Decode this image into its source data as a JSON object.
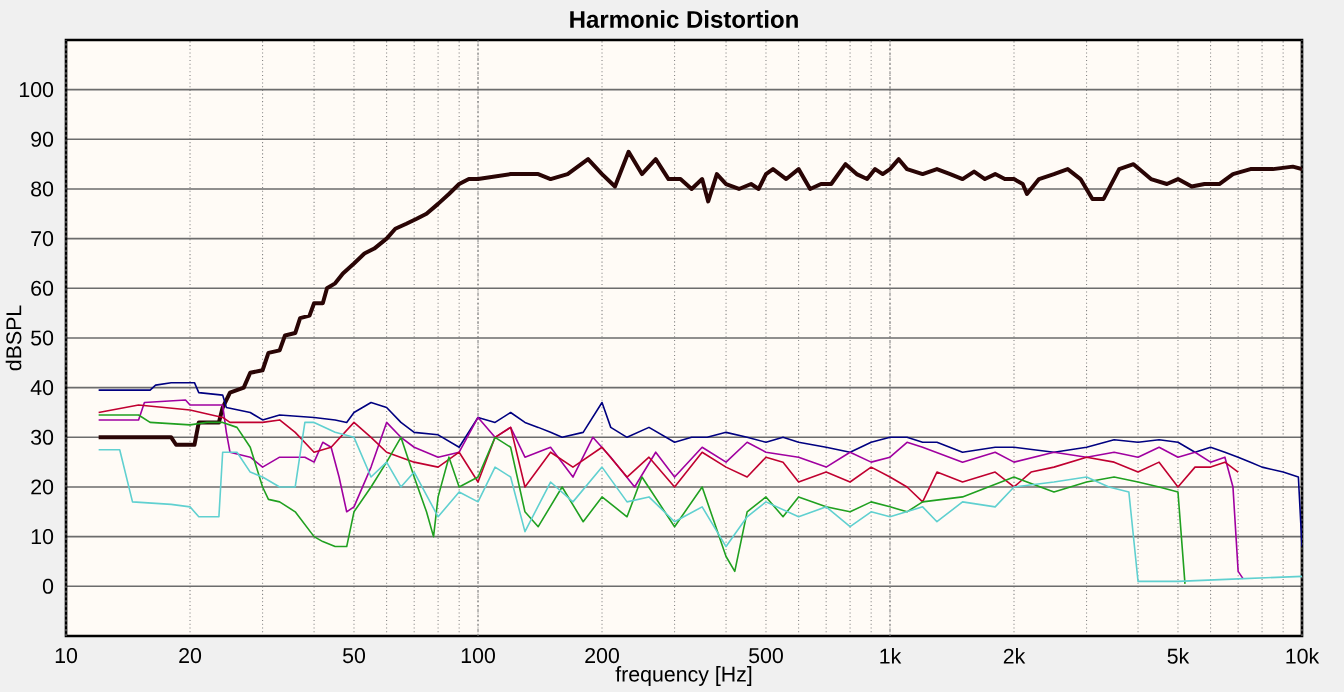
{
  "chart_data": {
    "type": "line",
    "title": "Harmonic Distortion",
    "xlabel": "frequency [Hz]",
    "ylabel": "dBSPL",
    "log": "x",
    "grid": true,
    "xlim": [
      10,
      10000
    ],
    "ylim": [
      -10,
      110
    ],
    "xticks": [
      10,
      20,
      {
        "value": 30,
        "label": null
      },
      {
        "value": 40,
        "label": null
      },
      50,
      {
        "value": 60,
        "label": null
      },
      {
        "value": 70,
        "label": null
      },
      {
        "value": 80,
        "label": null
      },
      {
        "value": 90,
        "label": null
      },
      100,
      200,
      {
        "value": 300,
        "label": null
      },
      {
        "value": 400,
        "label": null
      },
      500,
      {
        "value": 600,
        "label": null
      },
      {
        "value": 700,
        "label": null
      },
      {
        "value": 800,
        "label": null
      },
      {
        "value": 900,
        "label": null
      },
      {
        "value": 1000,
        "label": "1k"
      },
      {
        "value": 2000,
        "label": "2k"
      },
      {
        "value": 3000,
        "label": null
      },
      {
        "value": 4000,
        "label": null
      },
      {
        "value": 5000,
        "label": "5k"
      },
      {
        "value": 6000,
        "label": null
      },
      {
        "value": 7000,
        "label": null
      },
      {
        "value": 8000,
        "label": null
      },
      {
        "value": 9000,
        "label": null
      },
      {
        "value": 10000,
        "label": "10k"
      }
    ],
    "yticks": [
      0,
      10,
      20,
      30,
      40,
      50,
      60,
      70,
      80,
      90,
      100
    ],
    "series": [
      {
        "color": "#2a0505",
        "x": [
          12,
          18,
          18.5,
          20.5,
          21,
          23.5,
          24,
          25,
          27,
          28,
          30,
          31,
          33,
          34,
          36,
          37,
          39,
          40,
          42,
          43,
          45,
          47,
          50,
          53,
          56,
          60,
          63,
          67,
          71,
          75,
          80,
          85,
          90,
          95,
          100,
          120,
          140,
          150,
          165,
          185,
          200,
          215,
          232,
          250,
          270,
          290,
          310,
          330,
          350,
          362,
          380,
          400,
          430,
          460,
          480,
          500,
          520,
          560,
          600,
          640,
          680,
          720,
          780,
          830,
          880,
          920,
          960,
          1000,
          1050,
          1100,
          1200,
          1300,
          1400,
          1500,
          1600,
          1700,
          1800,
          1900,
          2000,
          2100,
          2150,
          2300,
          2500,
          2700,
          2900,
          3100,
          3300,
          3600,
          3900,
          4300,
          4700,
          5000,
          5400,
          5800,
          6300,
          6800,
          7500,
          8500,
          9500,
          10000
        ],
        "values": [
          30,
          30,
          28.5,
          28.5,
          33,
          33,
          36,
          39,
          40,
          43,
          43.5,
          47,
          47.5,
          50.5,
          51,
          54,
          54.5,
          57,
          57,
          60,
          61,
          63,
          65,
          67,
          68,
          70,
          72,
          73,
          74,
          75,
          77,
          79,
          81,
          82,
          82,
          83,
          83,
          82,
          83,
          86,
          83,
          80.5,
          87.5,
          83,
          86,
          82,
          82,
          80,
          82,
          77.5,
          83,
          81,
          80,
          81,
          80,
          83,
          84,
          82,
          84,
          80,
          81,
          81,
          85,
          83,
          82,
          84,
          83,
          84,
          86,
          84,
          83,
          84,
          83,
          82,
          83.5,
          82,
          83,
          82,
          82,
          81,
          79,
          82,
          83,
          84,
          82,
          78,
          78,
          84,
          85,
          82,
          81,
          82,
          80.5,
          81,
          81,
          83,
          84,
          84,
          84.5,
          84
        ]
      },
      {
        "color": "#000080",
        "x": [
          12,
          16,
          16.5,
          18,
          20.5,
          21,
          24,
          24.5,
          28,
          30,
          33,
          40,
          45,
          48,
          50,
          55,
          60,
          65,
          70,
          80,
          90,
          100,
          110,
          120,
          130,
          140,
          150,
          160,
          180,
          200,
          210,
          230,
          260,
          300,
          330,
          360,
          400,
          450,
          500,
          550,
          600,
          700,
          800,
          900,
          1000,
          1100,
          1200,
          1300,
          1500,
          1800,
          2000,
          2500,
          3000,
          3500,
          4000,
          4500,
          5000,
          5500,
          6000,
          6500,
          7000,
          7500,
          8000,
          9000,
          9800,
          10000
        ],
        "values": [
          39.5,
          39.5,
          40.5,
          41,
          41,
          39,
          38.5,
          36,
          35,
          33.5,
          34.5,
          34,
          33.5,
          33,
          35,
          37,
          36,
          33,
          31,
          30.5,
          28,
          34,
          33,
          35,
          33,
          32,
          31,
          30,
          31,
          37,
          32,
          30,
          32,
          29,
          30,
          30,
          31,
          30,
          29,
          30,
          29,
          28,
          27,
          29,
          30,
          30,
          29,
          29,
          27,
          28,
          28,
          27,
          28,
          29.5,
          29,
          29.5,
          29,
          27,
          28,
          27,
          26,
          25,
          24,
          23,
          22,
          8
        ]
      },
      {
        "color": "#a000a0",
        "x": [
          12,
          15,
          15.5,
          19.5,
          20,
          24,
          24.5,
          25,
          28,
          30,
          33,
          38,
          40,
          42,
          44,
          46,
          48,
          50,
          55,
          60,
          65,
          70,
          80,
          90,
          100,
          110,
          120,
          130,
          150,
          170,
          190,
          210,
          240,
          270,
          300,
          350,
          400,
          450,
          500,
          600,
          700,
          800,
          900,
          1000,
          1100,
          1200,
          1500,
          1800,
          2000,
          2500,
          3000,
          3500,
          4000,
          4500,
          5000,
          5500,
          6000,
          6500,
          6800,
          7000,
          7200
        ],
        "values": [
          33.5,
          33.5,
          37,
          37.5,
          36.5,
          36.5,
          31,
          27,
          26,
          24,
          26,
          26,
          25,
          29,
          28,
          22,
          15,
          16,
          24,
          33,
          30,
          28,
          26,
          27,
          34,
          30,
          32,
          26,
          28,
          22,
          30,
          26,
          20,
          27,
          22,
          28,
          25,
          29,
          27,
          26,
          24,
          27,
          25,
          26,
          29,
          28,
          25,
          27,
          25,
          27,
          26,
          27,
          26,
          28,
          26,
          27,
          25,
          26,
          20,
          3,
          1.5
        ]
      },
      {
        "color": "#c00030",
        "x": [
          12,
          15,
          20,
          24,
          25,
          30,
          33,
          36,
          40,
          44,
          50,
          55,
          60,
          70,
          80,
          90,
          100,
          110,
          120,
          130,
          150,
          170,
          200,
          230,
          260,
          300,
          350,
          400,
          450,
          500,
          550,
          600,
          700,
          800,
          900,
          1000,
          1100,
          1200,
          1300,
          1500,
          1800,
          2000,
          2200,
          2500,
          3000,
          3500,
          4000,
          4500,
          5000,
          5500,
          6000,
          6500,
          7000
        ],
        "values": [
          35,
          36.5,
          35.5,
          34,
          33,
          33,
          33.5,
          31,
          27,
          28,
          33,
          30,
          27,
          25,
          24,
          27,
          21,
          30,
          32,
          20,
          27,
          24,
          28,
          22,
          26,
          20,
          27,
          24,
          22,
          26,
          25,
          21,
          23,
          21,
          24,
          22,
          20,
          17,
          23,
          21,
          23,
          20,
          23,
          24,
          26,
          25,
          23,
          25,
          20,
          24,
          24,
          25,
          23
        ]
      },
      {
        "color": "#20a020",
        "x": [
          12,
          15,
          16,
          20,
          22,
          24,
          26,
          28,
          30,
          31,
          33,
          36,
          40,
          42,
          45,
          48,
          50,
          55,
          60,
          65,
          70,
          75,
          78,
          80,
          85,
          90,
          100,
          110,
          120,
          130,
          140,
          160,
          180,
          200,
          230,
          250,
          300,
          350,
          400,
          420,
          450,
          500,
          550,
          600,
          700,
          800,
          900,
          1000,
          1100,
          1200,
          1500,
          2000,
          2500,
          3000,
          3500,
          4000,
          4500,
          5000,
          5200
        ],
        "values": [
          34.5,
          34.5,
          33,
          32.5,
          33,
          33,
          32,
          28,
          20,
          17.5,
          17,
          15,
          10,
          9,
          8,
          8,
          15,
          20,
          25,
          30,
          22,
          15,
          10,
          18,
          26,
          20,
          22,
          30,
          28,
          15,
          12,
          20,
          13,
          18,
          14,
          22,
          12,
          20,
          6,
          3,
          15,
          18,
          14,
          18,
          16,
          15,
          17,
          16,
          15,
          17,
          18,
          22,
          19,
          21,
          22,
          21,
          20,
          19,
          0.5
        ]
      },
      {
        "color": "#60d0d0",
        "x": [
          12,
          13.5,
          14.5,
          18,
          20,
          21,
          23.5,
          24,
          26,
          28,
          30,
          33,
          36,
          38,
          40,
          45,
          50,
          55,
          60,
          65,
          70,
          80,
          90,
          100,
          110,
          120,
          130,
          150,
          170,
          200,
          230,
          260,
          300,
          350,
          400,
          450,
          500,
          600,
          700,
          800,
          900,
          1000,
          1200,
          1300,
          1500,
          1800,
          2000,
          2500,
          3000,
          3400,
          3800,
          4000,
          5000,
          7000,
          10000
        ],
        "values": [
          27.5,
          27.5,
          17,
          16.5,
          16,
          14,
          14,
          27,
          27,
          23,
          22,
          20,
          20,
          33,
          33,
          31,
          30,
          22,
          25,
          20,
          23,
          14,
          19,
          17,
          24,
          22,
          11,
          21,
          17,
          24,
          17,
          18,
          13,
          16,
          8,
          14,
          17,
          14,
          16,
          12,
          15,
          14,
          16,
          13,
          17,
          16,
          20,
          21,
          22,
          20,
          19,
          1,
          1,
          1.5,
          2
        ]
      }
    ]
  }
}
